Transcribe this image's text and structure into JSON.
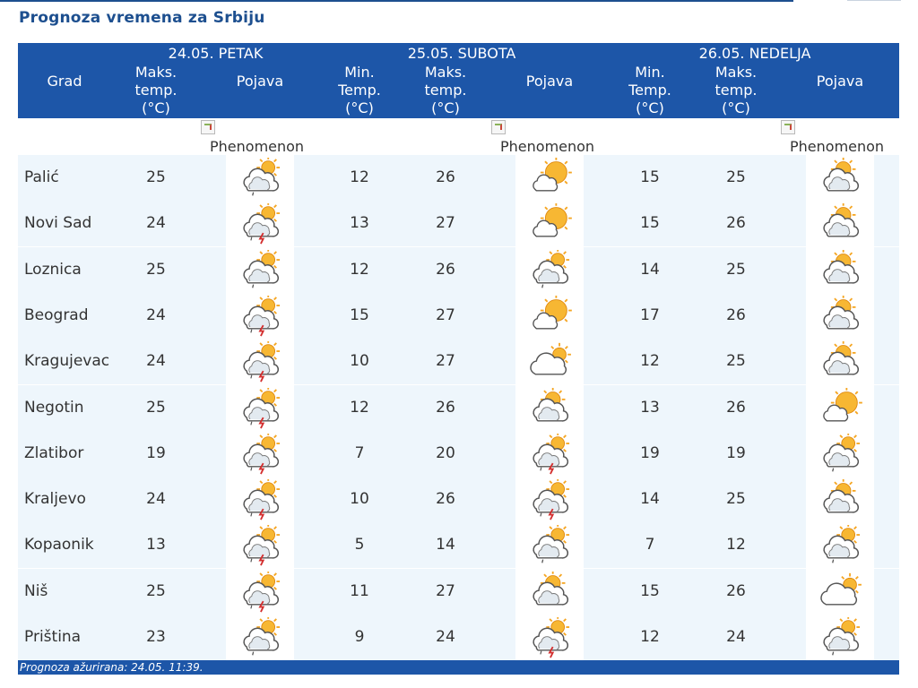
{
  "title": "Prognoza vremena za Srbiju",
  "header": {
    "grad": "Grad",
    "days": [
      {
        "date": "24.05. PETAK",
        "max": "Maks.\ntemp.\n(°C)",
        "pojava": "Pojava"
      },
      {
        "date": "25.05. SUBOTA",
        "min": "Min.\nTemp.\n(°C)",
        "max": "Maks.\ntemp.\n(°C)",
        "pojava": "Pojava"
      },
      {
        "date": "26.05. NEDELJA",
        "min": "Min.\nTemp.\n(°C)",
        "max": "Maks.\ntemp.\n(°C)",
        "pojava": "Pojava"
      }
    ]
  },
  "phenomenon_alt": "Phenomenon",
  "rows": [
    {
      "city": "Palić",
      "d1max": "25",
      "d1icon": "cloud-sun-light-rain-icon",
      "d2min": "12",
      "d2max": "26",
      "d2icon": "sun-cloud-icon",
      "d3min": "15",
      "d3max": "25",
      "d3icon": "partly-cloudy-icon"
    },
    {
      "city": "Novi Sad",
      "d1max": "24",
      "d1icon": "cloud-sun-storm-icon",
      "d2min": "13",
      "d2max": "27",
      "d2icon": "sun-cloud-icon",
      "d3min": "15",
      "d3max": "26",
      "d3icon": "partly-cloudy-icon"
    },
    {
      "city": "Loznica",
      "d1max": "25",
      "d1icon": "cloud-sun-light-rain-icon",
      "d2min": "12",
      "d2max": "26",
      "d2icon": "cloud-sun-light-rain-icon",
      "d3min": "14",
      "d3max": "25",
      "d3icon": "partly-cloudy-icon"
    },
    {
      "city": "Beograd",
      "d1max": "24",
      "d1icon": "cloud-sun-storm-icon",
      "d2min": "15",
      "d2max": "27",
      "d2icon": "sun-cloud-icon",
      "d3min": "17",
      "d3max": "26",
      "d3icon": "partly-cloudy-icon"
    },
    {
      "city": "Kragujevac",
      "d1max": "24",
      "d1icon": "cloud-sun-storm-icon",
      "d2min": "10",
      "d2max": "27",
      "d2icon": "mostly-cloudy-icon",
      "d3min": "12",
      "d3max": "25",
      "d3icon": "partly-cloudy-icon"
    },
    {
      "city": "Negotin",
      "d1max": "25",
      "d1icon": "cloud-sun-storm-icon",
      "d2min": "12",
      "d2max": "26",
      "d2icon": "partly-cloudy-icon",
      "d3min": "13",
      "d3max": "26",
      "d3icon": "sun-cloud-icon"
    },
    {
      "city": "Zlatibor",
      "d1max": "19",
      "d1icon": "cloud-sun-storm-icon",
      "d2min": "7",
      "d2max": "20",
      "d2icon": "cloud-sun-storm-icon",
      "d3min": "19",
      "d3max": "19",
      "d3icon": "cloud-sun-light-rain-icon"
    },
    {
      "city": "Kraljevo",
      "d1max": "24",
      "d1icon": "cloud-sun-storm-icon",
      "d2min": "10",
      "d2max": "26",
      "d2icon": "cloud-sun-storm-icon",
      "d3min": "14",
      "d3max": "25",
      "d3icon": "partly-cloudy-icon"
    },
    {
      "city": "Kopaonik",
      "d1max": "13",
      "d1icon": "cloud-sun-storm-icon",
      "d2min": "5",
      "d2max": "14",
      "d2icon": "cloud-sun-light-rain-icon",
      "d3min": "7",
      "d3max": "12",
      "d3icon": "cloud-sun-light-rain-icon"
    },
    {
      "city": "Niš",
      "d1max": "25",
      "d1icon": "cloud-sun-storm-icon",
      "d2min": "11",
      "d2max": "27",
      "d2icon": "partly-cloudy-icon",
      "d3min": "15",
      "d3max": "26",
      "d3icon": "mostly-cloudy-icon"
    },
    {
      "city": "Priština",
      "d1max": "23",
      "d1icon": "cloud-sun-light-rain-icon",
      "d2min": "9",
      "d2max": "24",
      "d2icon": "cloud-sun-storm-icon",
      "d3min": "12",
      "d3max": "24",
      "d3icon": "cloud-sun-light-rain-icon"
    }
  ],
  "footer": "Prognoza ažurirana:  24.05.  11:39.",
  "colors": {
    "header_bg": "#1d56a8",
    "title": "#1d4f8f",
    "row_alt": "#eef6fc",
    "text": "#333333",
    "sun": "#f5a623",
    "lightning": "#d32f2f"
  }
}
